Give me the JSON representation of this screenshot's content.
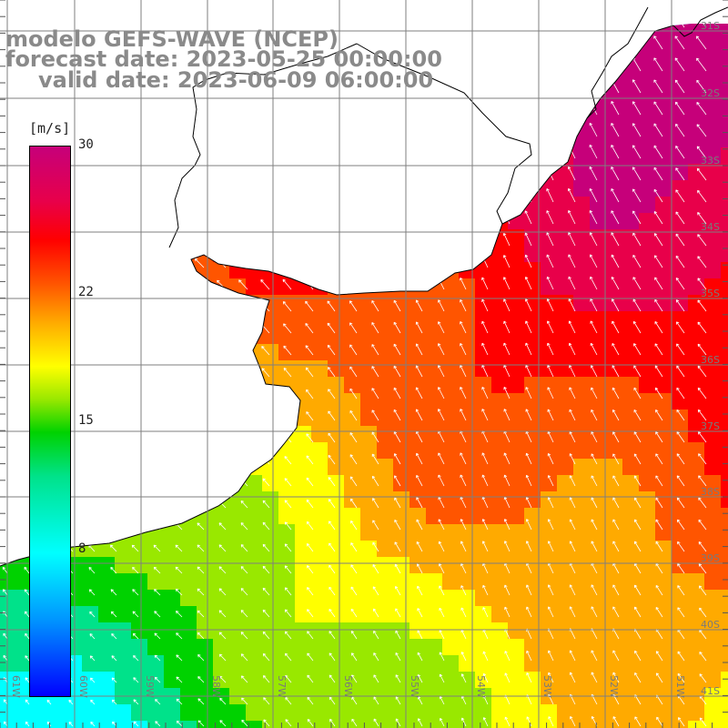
{
  "title": {
    "line1": "modelo GEFS-WAVE (NCEP)",
    "line2": "forecast date: 2023-05-25 00:00:00",
    "line3": "valid date: 2023-06-09 06:00:00"
  },
  "colorbar": {
    "unit": "[m/s]",
    "min": 0,
    "max": 30,
    "ticks": [
      {
        "value": 30,
        "label": "30"
      },
      {
        "value": 22,
        "label": "22"
      },
      {
        "value": 15,
        "label": "15"
      },
      {
        "value": 8,
        "label": "8"
      }
    ],
    "colors": [
      "#0000ff",
      "#0096ff",
      "#00ffff",
      "#00e28a",
      "#00d200",
      "#99e800",
      "#ffff00",
      "#ffaa00",
      "#ff5500",
      "#ff0000",
      "#e8004a",
      "#c6007a"
    ]
  },
  "map": {
    "lon_labels": [
      "61W",
      "60W",
      "59W",
      "58W",
      "57W",
      "56W",
      "55W",
      "54W",
      "53W",
      "52W",
      "51W"
    ],
    "lat_labels": [
      "31S",
      "32S",
      "33S",
      "34S",
      "35S",
      "36S",
      "37S",
      "38S",
      "39S",
      "40S",
      "41S"
    ],
    "land_color": "#ffffff",
    "coast_color": "#000000",
    "grid_color": "#7f7f7f",
    "arrow_color": "#ffffff"
  }
}
